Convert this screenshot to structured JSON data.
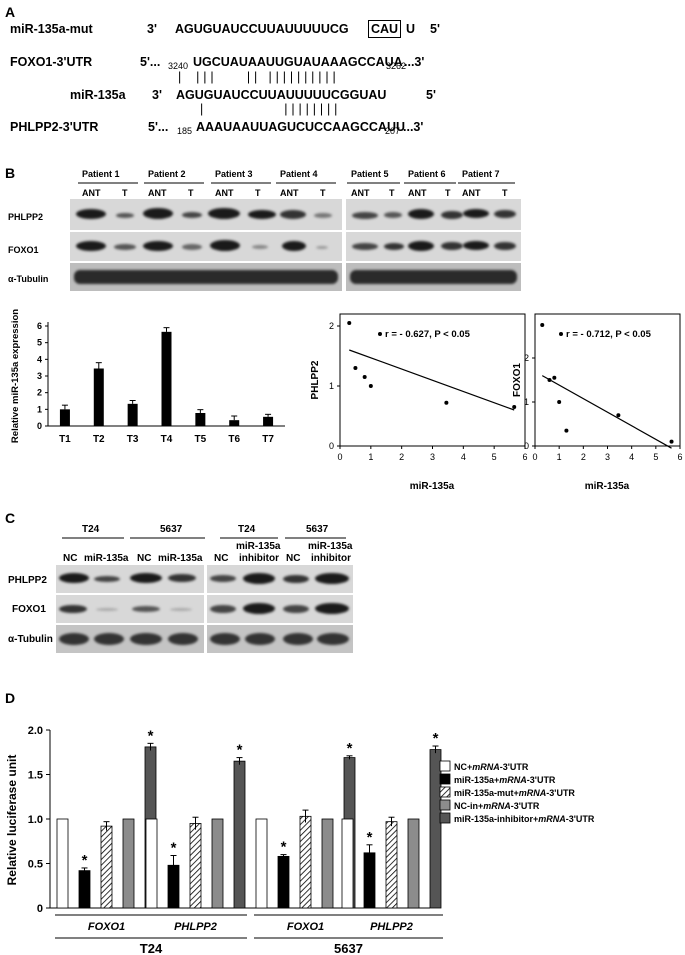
{
  "panels": {
    "A": "A",
    "B": "B",
    "C": "C",
    "D": "D"
  },
  "panelA": {
    "rows": [
      {
        "label": "miR-135a-mut",
        "p5": "3'",
        "seq": "AGUGUAUCCUUAUUUUUCG",
        "boxed": "CAU",
        "tail": "U",
        "p3": "5'"
      },
      {
        "label": "FOXO1-3'UTR",
        "p5": "5'...",
        "start": "3240",
        "seq": "UGCUAUAAUUGUAUAAAGCCAUA",
        "end": "3262",
        "p3": "...3'"
      },
      {
        "label": "miR-135a",
        "p5": "3'",
        "seq": "AGUGUAUCCUUAUUUUUCGGUAU",
        "p3": "5'"
      },
      {
        "label": "PHLPP2-3'UTR",
        "p5": "5'...",
        "start": "185",
        "seq": "AAAUAAUUAGUCUCCAAGCCAUU",
        "end": "207",
        "p3": "...3'"
      }
    ],
    "pairs_foxo": "|    | | |         | |   | | | | | | | | | |",
    "pairs_phlpp": "|                      | | | | | | | |"
  },
  "panelB": {
    "patients": [
      "Patient 1",
      "Patient 2",
      "Patient 3",
      "Patient 4",
      "Patient 5",
      "Patient 6",
      "Patient 7"
    ],
    "lane_labels": [
      "ANT",
      "T"
    ],
    "rows": [
      "PHLPP2",
      "FOXO1",
      "α-Tubulin"
    ]
  },
  "chart_data": [
    {
      "type": "bar",
      "categories": [
        "T1",
        "T2",
        "T3",
        "T4",
        "T5",
        "T6",
        "T7"
      ],
      "values": [
        1.0,
        3.45,
        1.33,
        5.65,
        0.78,
        0.35,
        0.55
      ],
      "errors": [
        0.25,
        0.35,
        0.2,
        0.25,
        0.2,
        0.25,
        0.15
      ],
      "ylabel": "Relative miR-135a expression",
      "ylim": [
        0,
        6
      ],
      "yticks": [
        "0",
        "1",
        "2",
        "3",
        "4",
        "5",
        "6"
      ]
    },
    {
      "type": "scatter",
      "x": [
        0.3,
        0.5,
        0.8,
        1.0,
        3.45,
        5.65
      ],
      "y": [
        2.05,
        1.3,
        1.15,
        1.0,
        0.72,
        0.65
      ],
      "fit": [
        [
          0.3,
          1.6
        ],
        [
          5.65,
          0.6
        ]
      ],
      "xlabel": "miR-135a",
      "ylabel": "PHLPP2",
      "xlim": [
        0,
        6
      ],
      "ylim": [
        0,
        2.2
      ],
      "xticks": [
        "0",
        "1",
        "2",
        "3",
        "4",
        "5",
        "6"
      ],
      "yticks": [
        "0",
        "1",
        "2"
      ],
      "annotation": "r = - 0.627, P < 0.05"
    },
    {
      "type": "scatter",
      "x": [
        0.3,
        0.6,
        0.8,
        1.0,
        1.3,
        3.45,
        5.65
      ],
      "y": [
        2.75,
        1.5,
        1.55,
        1.0,
        0.35,
        0.7,
        0.1
      ],
      "fit": [
        [
          0.3,
          1.6
        ],
        [
          5.65,
          -0.05
        ]
      ],
      "xlabel": "miR-135a",
      "ylabel": "FOXO1",
      "xlim": [
        0,
        6
      ],
      "ylim": [
        0,
        3
      ],
      "xticks": [
        "0",
        "1",
        "2",
        "3",
        "4",
        "5",
        "6"
      ],
      "yticks": [
        "0",
        "1",
        "2"
      ],
      "annotation": "r = - 0.712, P < 0.05"
    },
    {
      "type": "bar",
      "groups": [
        {
          "gene": "FOXO1",
          "cell": "T24"
        },
        {
          "gene": "PHLPP2",
          "cell": "T24"
        },
        {
          "gene": "FOXO1",
          "cell": "5637"
        },
        {
          "gene": "PHLPP2",
          "cell": "5637"
        }
      ],
      "series": [
        {
          "name": "NC+mRNA-3'UTR",
          "values": [
            1.0,
            1.0,
            1.0,
            1.0
          ],
          "errors": [
            0,
            0,
            0,
            0
          ],
          "fill": "#ffffff"
        },
        {
          "name": "miR-135a+mRNA-3'UTR",
          "values": [
            0.42,
            0.48,
            0.58,
            0.62
          ],
          "errors": [
            0.03,
            0.11,
            0.02,
            0.09
          ],
          "fill": "#000000",
          "star": true
        },
        {
          "name": "miR-135a-mut+mRNA-3'UTR",
          "values": [
            0.92,
            0.95,
            1.03,
            0.97
          ],
          "errors": [
            0.05,
            0.07,
            0.07,
            0.05
          ],
          "fill": "hatch"
        },
        {
          "name": "NC-in+mRNA-3'UTR",
          "values": [
            1.0,
            1.0,
            1.0,
            1.0
          ],
          "errors": [
            0,
            0,
            0,
            0
          ],
          "fill": "#8c8c8c"
        },
        {
          "name": "miR-135a-inhibitor+mRNA-3'UTR",
          "values": [
            1.81,
            1.65,
            1.69,
            1.78
          ],
          "errors": [
            0.04,
            0.04,
            0.02,
            0.04
          ],
          "fill": "#555555",
          "star": true
        }
      ],
      "ylabel": "Relative luciferase unit",
      "ylim": [
        0,
        2.0
      ],
      "yticks": [
        "0",
        "0.5",
        "1.0",
        "1.5",
        "2.0"
      ],
      "star_label": "*"
    }
  ],
  "panelC": {
    "cells_left": [
      "T24",
      "5637"
    ],
    "cells_right": [
      "T24",
      "5637"
    ],
    "lanes_left": [
      "NC",
      "miR-135a",
      "NC",
      "miR-135a"
    ],
    "lanes_right_nc": "NC",
    "lanes_right_inh1": "miR-135a",
    "lanes_right_inh2": "inhibitor",
    "rows": [
      "PHLPP2",
      "FOXO1",
      "α-Tubulin"
    ]
  },
  "legendD": [
    {
      "pre": "NC+",
      "it": "mRNA",
      "post": "-3'UTR"
    },
    {
      "pre": "miR-135a+",
      "it": "mRNA",
      "post": "-3'UTR"
    },
    {
      "pre": "miR-135a-mut+",
      "it": "mRNA",
      "post": "-3'UTR"
    },
    {
      "pre": "NC-in+",
      "it": "mRNA",
      "post": "-3'UTR"
    },
    {
      "pre": "miR-135a-inhibitor+",
      "it": "mRNA",
      "post": "-3'UTR"
    }
  ]
}
